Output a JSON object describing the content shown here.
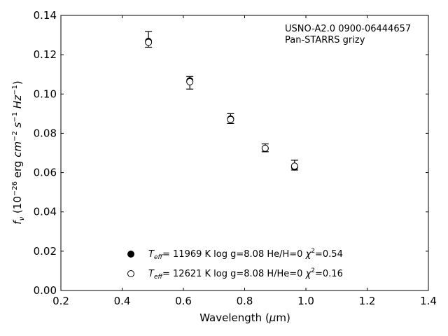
{
  "chart_data": {
    "type": "scatter",
    "xlabel": "Wavelength (μm)",
    "ylabel": "f_ν (10⁻²⁶ erg cm⁻² s⁻¹ Hz⁻¹)",
    "xlim": [
      0.2,
      1.4
    ],
    "ylim": [
      0.0,
      0.14
    ],
    "x_ticks": [
      "0.2",
      "0.4",
      "0.6",
      "0.8",
      "1.0",
      "1.2",
      "1.4"
    ],
    "y_ticks": [
      "0.00",
      "0.02",
      "0.04",
      "0.06",
      "0.08",
      "0.10",
      "0.12",
      "0.14"
    ],
    "annotation_lines": [
      "USNO-A2.0 0900-06444657",
      "Pan-STARRS grizy"
    ],
    "observed": {
      "x": [
        0.486,
        0.621,
        0.754,
        0.867,
        0.963
      ],
      "y": [
        0.1278,
        0.1057,
        0.0875,
        0.0726,
        0.0638
      ],
      "err": [
        0.004,
        0.0032,
        0.0025,
        0.002,
        0.0025
      ]
    },
    "series": [
      {
        "name": "T_eff= 11969 K  log g=8.08  He/H=0  χ²=0.54",
        "marker": "filled-circle",
        "x": [
          0.486,
          0.621,
          0.754,
          0.867,
          0.963
        ],
        "y": [
          0.1268,
          0.1068,
          0.0873,
          0.0723,
          0.0628
        ]
      },
      {
        "name": "T_eff= 12621 K  log g=8.08  H/He=0  χ²=0.16",
        "marker": "open-circle",
        "x": [
          0.486,
          0.621,
          0.754,
          0.867,
          0.963
        ],
        "y": [
          0.1263,
          0.1062,
          0.087,
          0.0724,
          0.0633
        ]
      }
    ],
    "legend_entries": [
      {
        "T": "T",
        "sub": "eff",
        "rest": "= 11969 K  log g=8.08  He/H=0  ",
        "chi": "χ",
        "sup": "2",
        "end": "=0.54"
      },
      {
        "T": "T",
        "sub": "eff",
        "rest": "= 12621 K  log g=8.08  H/He=0  ",
        "chi": "χ",
        "sup": "2",
        "end": "=0.16"
      }
    ],
    "legend_position": "lower-center",
    "grid": false
  }
}
